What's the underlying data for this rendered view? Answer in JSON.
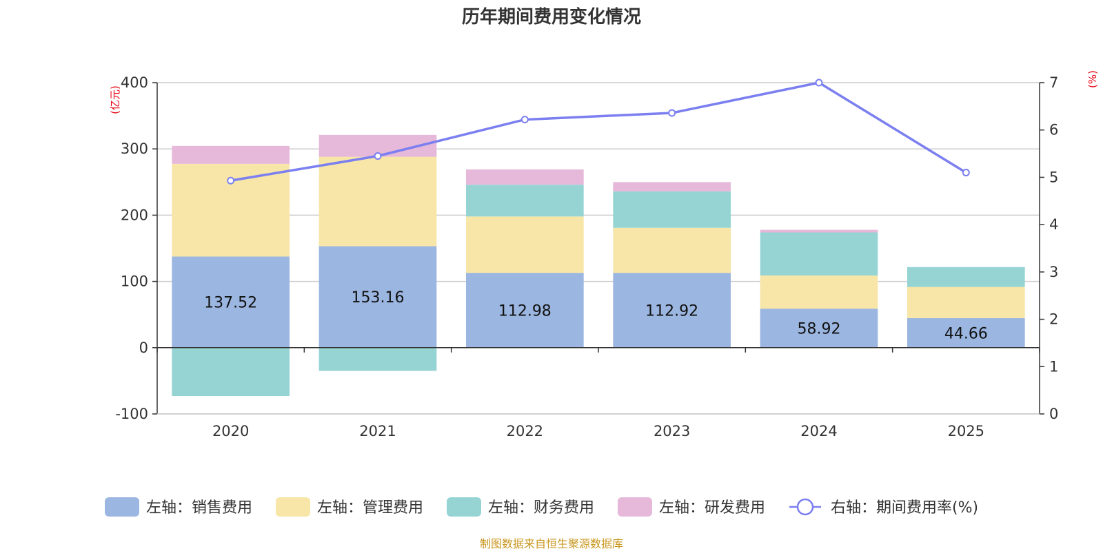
{
  "chart_data": {
    "type": "bar",
    "title": "历年期间费用变化情况",
    "categories": [
      "2020",
      "2021",
      "2022",
      "2023",
      "2024",
      "2025"
    ],
    "left_axis": {
      "unit": "(亿元)",
      "ylim": [
        -100,
        400
      ],
      "ticks": [
        -100,
        0,
        100,
        200,
        300,
        400
      ]
    },
    "right_axis": {
      "unit": "(%)",
      "ylim": [
        0,
        7
      ],
      "ticks": [
        0,
        1,
        2,
        3,
        4,
        5,
        6,
        7
      ]
    },
    "series": [
      {
        "name": "左轴：销售费用",
        "axis": "left",
        "color": "#9bb6e0",
        "values": [
          137.52,
          153.16,
          112.98,
          112.92,
          58.92,
          44.66
        ],
        "labels": [
          "137.52",
          "153.16",
          "112.98",
          "112.92",
          "58.92",
          "44.66"
        ]
      },
      {
        "name": "左轴：管理费用",
        "axis": "left",
        "color": "#f7e6a7",
        "values": [
          140,
          135,
          85,
          68,
          50,
          47
        ]
      },
      {
        "name": "左轴：财务费用",
        "axis": "left",
        "color": "#96d4d4",
        "values": [
          -73,
          -35,
          48,
          55,
          65,
          30
        ]
      },
      {
        "name": "左轴：研发费用",
        "axis": "left",
        "color": "#e6b8d9",
        "values": [
          27,
          33,
          23,
          14,
          4,
          0
        ]
      },
      {
        "name": "右轴：期间费用率(%)",
        "axis": "right",
        "type": "line",
        "color": "#7b7ff0",
        "values": [
          4.93,
          5.45,
          6.22,
          6.36,
          7.0,
          5.1
        ]
      }
    ],
    "source": "制图数据来自恒生聚源数据库"
  }
}
